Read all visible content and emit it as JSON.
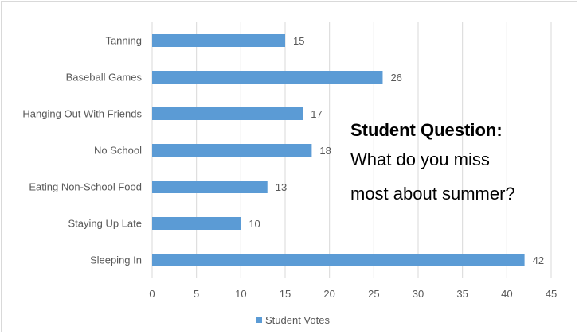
{
  "chart_data": {
    "type": "bar",
    "orientation": "horizontal",
    "categories": [
      "Tanning",
      "Baseball Games",
      "Hanging Out With Friends",
      "No School",
      "Eating Non-School Food",
      "Staying Up Late",
      "Sleeping In"
    ],
    "series": [
      {
        "name": "Student Votes",
        "values": [
          15,
          26,
          17,
          18,
          13,
          10,
          42
        ],
        "color": "#5b9bd5"
      }
    ],
    "xlim": [
      0,
      45
    ],
    "xticks": [
      0,
      5,
      10,
      15,
      20,
      25,
      30,
      35,
      40,
      45
    ],
    "grid": "vertical",
    "legend_position": "bottom",
    "data_labels": true
  },
  "annotation": {
    "heading": "Student Question:",
    "line1": "What do you miss",
    "line2": "most about summer?"
  }
}
